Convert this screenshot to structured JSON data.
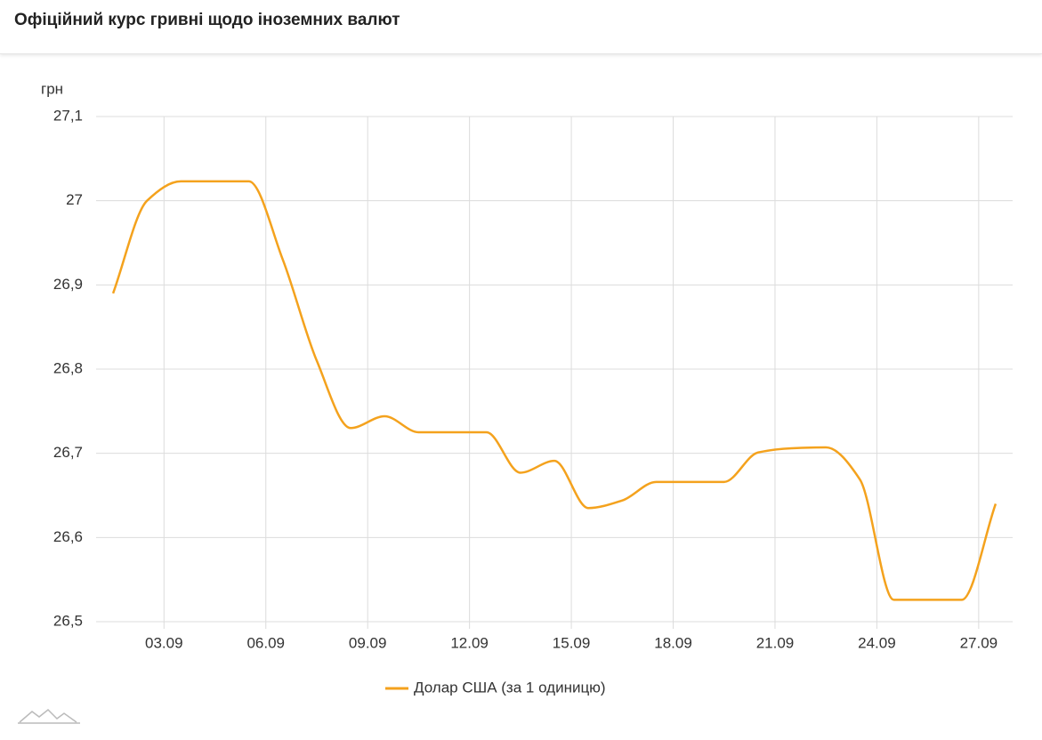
{
  "chart_data": {
    "type": "line",
    "title": "Офіційний курс гривні щодо іноземних валют",
    "y_label": "грн",
    "x": [
      1.5,
      2.5,
      3.5,
      4.5,
      5.5,
      6.5,
      7.5,
      8.5,
      9.5,
      10.5,
      11.5,
      12.5,
      13.5,
      14.5,
      15.5,
      16.5,
      17.5,
      18.5,
      19.5,
      20.5,
      21.5,
      22.5,
      23.5,
      24.5,
      25.5,
      26.5,
      27.5
    ],
    "series": [
      {
        "name": "Долар США (за 1 одиницю)",
        "color": "#f4a21d",
        "values": [
          26.89,
          27.0,
          27.023,
          27.023,
          27.023,
          26.93,
          26.81,
          26.73,
          26.744,
          26.725,
          26.725,
          26.725,
          26.677,
          26.691,
          26.635,
          26.644,
          26.666,
          26.666,
          26.666,
          26.701,
          26.706,
          26.707,
          26.669,
          26.526,
          26.526,
          26.526,
          26.64
        ]
      }
    ],
    "xlim": [
      1,
      28
    ],
    "xticks": [
      {
        "value": 3,
        "label": "03.09"
      },
      {
        "value": 6,
        "label": "06.09"
      },
      {
        "value": 9,
        "label": "09.09"
      },
      {
        "value": 12,
        "label": "12.09"
      },
      {
        "value": 15,
        "label": "15.09"
      },
      {
        "value": 18,
        "label": "18.09"
      },
      {
        "value": 21,
        "label": "21.09"
      },
      {
        "value": 24,
        "label": "24.09"
      },
      {
        "value": 27,
        "label": "27.09"
      }
    ],
    "ylim": [
      26.5,
      27.1
    ],
    "yticks": [
      {
        "value": 26.5,
        "label": "26,5"
      },
      {
        "value": 26.6,
        "label": "26,6"
      },
      {
        "value": 26.7,
        "label": "26,7"
      },
      {
        "value": 26.8,
        "label": "26,8"
      },
      {
        "value": 26.9,
        "label": "26,9"
      },
      27,
      {
        "value": 27.1,
        "label": "27,1"
      }
    ],
    "grid": true
  }
}
